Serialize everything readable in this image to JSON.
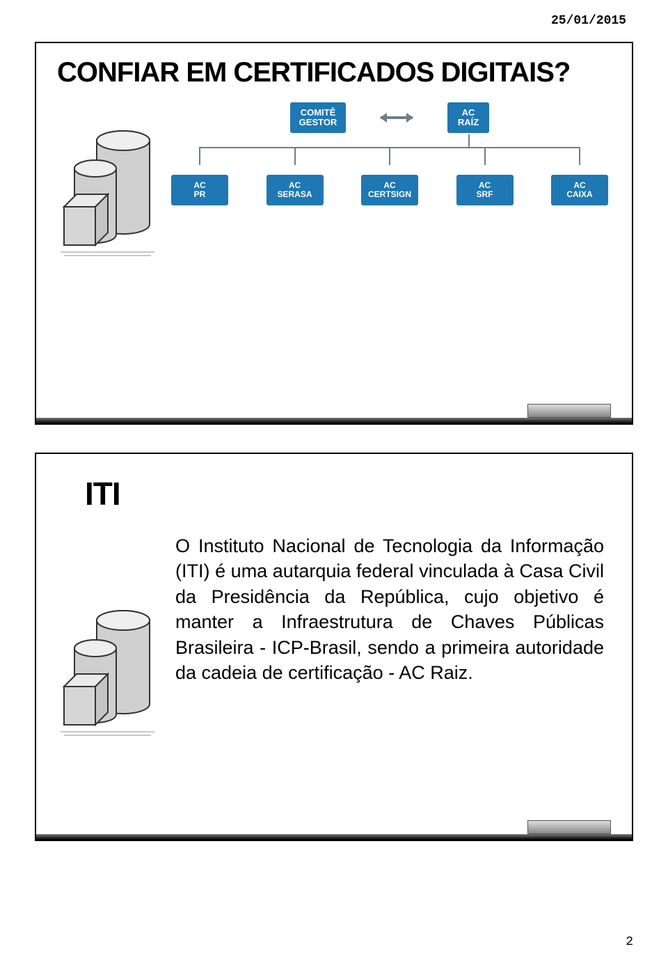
{
  "header_date": "25/01/2015",
  "page_number": "2",
  "colors": {
    "node_bg": "#1e78b4",
    "node_text": "#ffffff",
    "line": "#6e7d88",
    "arrow": "#6e7d88",
    "slide_border": "#000000"
  },
  "slide1": {
    "title": "CONFIAR EM CERTIFICADOS DIGITAIS?",
    "top_nodes": {
      "comite": {
        "line1": "COMITÊ",
        "line2": "GESTOR"
      },
      "ac_raiz": {
        "line1": "AC",
        "line2": "RAÍZ"
      }
    },
    "leaf_nodes": [
      {
        "line1": "AC",
        "line2": "PR"
      },
      {
        "line1": "AC",
        "line2": "SERASA"
      },
      {
        "line1": "AC",
        "line2": "CERTSIGN"
      },
      {
        "line1": "AC",
        "line2": "SRF"
      },
      {
        "line1": "AC",
        "line2": "CAIXA"
      }
    ]
  },
  "slide2": {
    "title": "ITI",
    "body": "O Instituto Nacional de Tecnologia da Informação (ITI) é uma autarquia federal vinculada à Casa Civil da Presidência da República, cujo objetivo é manter a Infraestrutura de Chaves Públicas Brasileira - ICP-Brasil, sendo a primeira autoridade da cadeia de certificação - AC Raiz."
  }
}
